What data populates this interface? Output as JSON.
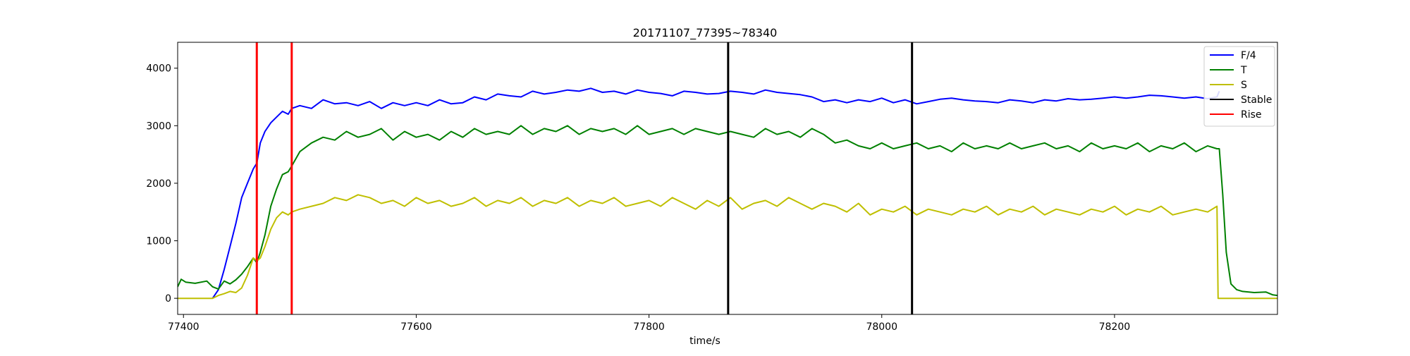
{
  "chart_data": {
    "type": "line",
    "title": "20171107_77395~78340",
    "xlabel": "time/s",
    "ylabel": "",
    "xlim": [
      77395,
      78340
    ],
    "ylim": [
      -280,
      4450
    ],
    "xticks": [
      77400,
      77600,
      77800,
      78000,
      78200
    ],
    "yticks": [
      0,
      1000,
      2000,
      3000,
      4000
    ],
    "grid": false,
    "legend_position": "top-right",
    "legend": [
      {
        "label": "F/4",
        "color": "#0000ff"
      },
      {
        "label": "T",
        "color": "#008000"
      },
      {
        "label": "S",
        "color": "#bfbf00"
      },
      {
        "label": "Stable",
        "color": "#000000"
      },
      {
        "label": "Rise",
        "color": "#ff0000"
      }
    ],
    "series": [
      {
        "name": "F/4",
        "color": "#0000ff",
        "x": [
          77425,
          77430,
          77435,
          77440,
          77445,
          77450,
          77455,
          77460,
          77463,
          77466,
          77470,
          77475,
          77480,
          77485,
          77490,
          77493,
          77500,
          77510,
          77520,
          77530,
          77540,
          77550,
          77560,
          77570,
          77580,
          77590,
          77600,
          77610,
          77620,
          77630,
          77640,
          77650,
          77660,
          77670,
          77680,
          77690,
          77700,
          77710,
          77720,
          77730,
          77740,
          77750,
          77760,
          77770,
          77780,
          77790,
          77800,
          77810,
          77820,
          77830,
          77840,
          77850,
          77860,
          77870,
          77880,
          77890,
          77900,
          77910,
          77920,
          77930,
          77940,
          77950,
          77960,
          77970,
          77980,
          77990,
          78000,
          78010,
          78020,
          78030,
          78040,
          78050,
          78060,
          78070,
          78080,
          78090,
          78100,
          78110,
          78120,
          78130,
          78140,
          78150,
          78160,
          78170,
          78180,
          78190,
          78200,
          78210,
          78220,
          78230,
          78240,
          78250,
          78260,
          78270,
          78280,
          78288,
          78290
        ],
        "values": [
          0,
          150,
          500,
          900,
          1300,
          1750,
          2000,
          2250,
          2350,
          2700,
          2900,
          3050,
          3150,
          3250,
          3200,
          3300,
          3350,
          3300,
          3450,
          3380,
          3400,
          3350,
          3420,
          3300,
          3400,
          3350,
          3400,
          3350,
          3450,
          3380,
          3400,
          3500,
          3450,
          3550,
          3520,
          3500,
          3600,
          3550,
          3580,
          3620,
          3600,
          3650,
          3580,
          3600,
          3550,
          3620,
          3580,
          3560,
          3520,
          3600,
          3580,
          3550,
          3560,
          3600,
          3580,
          3550,
          3620,
          3580,
          3560,
          3540,
          3500,
          3420,
          3450,
          3400,
          3450,
          3420,
          3480,
          3400,
          3450,
          3380,
          3420,
          3460,
          3480,
          3450,
          3430,
          3420,
          3400,
          3450,
          3430,
          3400,
          3450,
          3430,
          3470,
          3450,
          3460,
          3480,
          3500,
          3480,
          3500,
          3530,
          3520,
          3500,
          3480,
          3500,
          3470,
          3500,
          3600
        ]
      },
      {
        "name": "T",
        "color": "#008000",
        "x": [
          77395,
          77398,
          77402,
          77410,
          77420,
          77425,
          77430,
          77435,
          77440,
          77445,
          77450,
          77455,
          77460,
          77463,
          77466,
          77470,
          77475,
          77480,
          77485,
          77490,
          77493,
          77500,
          77510,
          77520,
          77530,
          77540,
          77550,
          77560,
          77570,
          77580,
          77590,
          77600,
          77610,
          77620,
          77630,
          77640,
          77650,
          77660,
          77670,
          77680,
          77690,
          77700,
          77710,
          77720,
          77730,
          77740,
          77750,
          77760,
          77770,
          77780,
          77790,
          77800,
          77810,
          77820,
          77830,
          77840,
          77850,
          77860,
          77870,
          77880,
          77890,
          77900,
          77910,
          77920,
          77930,
          77940,
          77950,
          77960,
          77970,
          77980,
          77990,
          78000,
          78010,
          78020,
          78030,
          78040,
          78050,
          78060,
          78070,
          78080,
          78090,
          78100,
          78110,
          78120,
          78130,
          78140,
          78150,
          78160,
          78170,
          78180,
          78190,
          78200,
          78210,
          78220,
          78230,
          78240,
          78250,
          78260,
          78270,
          78280,
          78288,
          78290,
          78293,
          78296,
          78300,
          78305,
          78310,
          78320,
          78330,
          78336,
          78340
        ],
        "values": [
          200,
          330,
          280,
          260,
          300,
          200,
          160,
          300,
          250,
          320,
          420,
          550,
          700,
          620,
          800,
          1100,
          1600,
          1900,
          2150,
          2200,
          2300,
          2550,
          2700,
          2800,
          2750,
          2900,
          2800,
          2850,
          2950,
          2750,
          2900,
          2800,
          2850,
          2750,
          2900,
          2800,
          2950,
          2850,
          2900,
          2850,
          3000,
          2850,
          2950,
          2900,
          3000,
          2850,
          2950,
          2900,
          2950,
          2850,
          3000,
          2850,
          2900,
          2950,
          2850,
          2950,
          2900,
          2850,
          2900,
          2850,
          2800,
          2950,
          2850,
          2900,
          2800,
          2950,
          2850,
          2700,
          2750,
          2650,
          2600,
          2700,
          2600,
          2650,
          2700,
          2600,
          2650,
          2550,
          2700,
          2600,
          2650,
          2600,
          2700,
          2600,
          2650,
          2700,
          2600,
          2650,
          2550,
          2700,
          2600,
          2650,
          2600,
          2700,
          2550,
          2650,
          2600,
          2700,
          2550,
          2650,
          2600,
          2600,
          1800,
          800,
          250,
          150,
          120,
          100,
          110,
          60,
          50
        ]
      },
      {
        "name": "S",
        "color": "#bfbf00",
        "x": [
          77395,
          77425,
          77430,
          77435,
          77440,
          77445,
          77450,
          77455,
          77460,
          77463,
          77466,
          77470,
          77475,
          77480,
          77485,
          77490,
          77493,
          77500,
          77510,
          77520,
          77530,
          77540,
          77550,
          77560,
          77570,
          77580,
          77590,
          77600,
          77610,
          77620,
          77630,
          77640,
          77650,
          77660,
          77670,
          77680,
          77690,
          77700,
          77710,
          77720,
          77730,
          77740,
          77750,
          77760,
          77770,
          77780,
          77790,
          77800,
          77810,
          77820,
          77830,
          77840,
          77850,
          77860,
          77870,
          77880,
          77890,
          77900,
          77910,
          77920,
          77930,
          77940,
          77950,
          77960,
          77970,
          77980,
          77990,
          78000,
          78010,
          78020,
          78030,
          78040,
          78050,
          78060,
          78070,
          78080,
          78090,
          78100,
          78110,
          78120,
          78130,
          78140,
          78150,
          78160,
          78170,
          78180,
          78190,
          78200,
          78210,
          78220,
          78230,
          78240,
          78250,
          78260,
          78270,
          78280,
          78288,
          78289,
          78340
        ],
        "values": [
          0,
          0,
          50,
          80,
          120,
          100,
          180,
          400,
          700,
          650,
          700,
          900,
          1200,
          1400,
          1500,
          1450,
          1500,
          1550,
          1600,
          1650,
          1750,
          1700,
          1800,
          1750,
          1650,
          1700,
          1600,
          1750,
          1650,
          1700,
          1600,
          1650,
          1750,
          1600,
          1700,
          1650,
          1750,
          1600,
          1700,
          1650,
          1750,
          1600,
          1700,
          1650,
          1750,
          1600,
          1650,
          1700,
          1600,
          1750,
          1650,
          1550,
          1700,
          1600,
          1750,
          1550,
          1650,
          1700,
          1600,
          1750,
          1650,
          1550,
          1650,
          1600,
          1500,
          1650,
          1450,
          1550,
          1500,
          1600,
          1450,
          1550,
          1500,
          1450,
          1550,
          1500,
          1600,
          1450,
          1550,
          1500,
          1600,
          1450,
          1550,
          1500,
          1450,
          1550,
          1500,
          1600,
          1450,
          1550,
          1500,
          1600,
          1450,
          1500,
          1550,
          1500,
          1600,
          0,
          0
        ]
      }
    ],
    "vlines": [
      {
        "name": "Rise",
        "color": "#ff0000",
        "x": [
          77463,
          77493
        ]
      },
      {
        "name": "Stable",
        "color": "#000000",
        "x": [
          77868,
          78026
        ]
      }
    ]
  }
}
